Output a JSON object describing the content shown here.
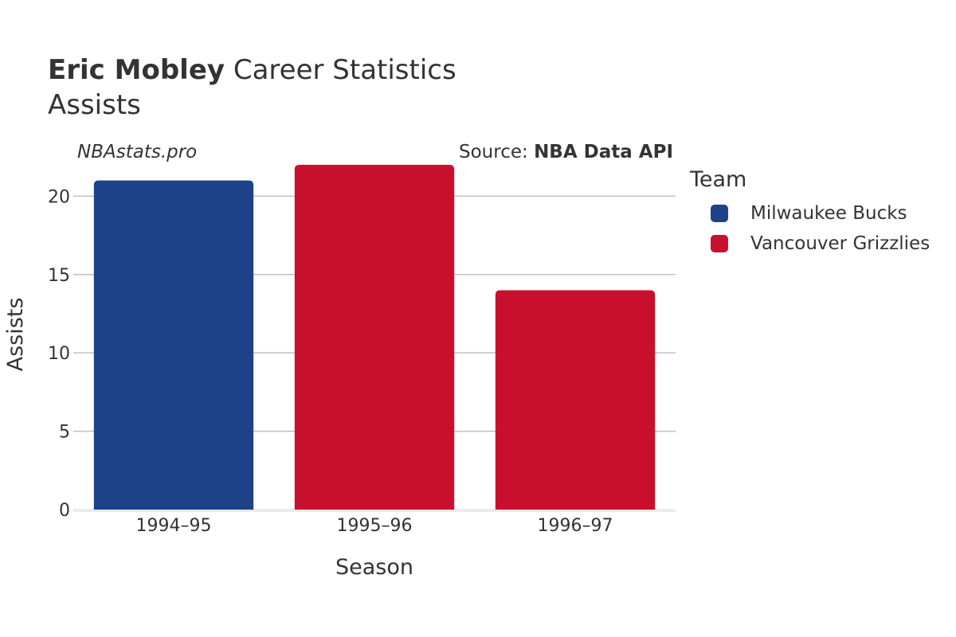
{
  "header": {
    "title_bold": "Eric Mobley",
    "title_rest": " Career Statistics",
    "subtitle": "Assists",
    "site": "NBAstats.pro",
    "source_prefix": "Source: ",
    "source_name": "NBA Data API"
  },
  "legend": {
    "title": "Team",
    "items": [
      {
        "label": "Milwaukee Bucks",
        "color": "#1d428a"
      },
      {
        "label": "Vancouver Grizzlies",
        "color": "#c8102e"
      }
    ]
  },
  "chart_data": {
    "type": "bar",
    "categories": [
      "1994–95",
      "1995–96",
      "1996–97"
    ],
    "values": [
      21,
      22,
      14
    ],
    "teams": [
      "Milwaukee Bucks",
      "Vancouver Grizzlies",
      "Vancouver Grizzlies"
    ],
    "colors": [
      "#1d428a",
      "#c8102e",
      "#c8102e"
    ],
    "xlabel": "Season",
    "ylabel": "Assists",
    "ylim": [
      0,
      22
    ],
    "yticks": [
      0,
      5,
      10,
      15,
      20
    ],
    "grid": true,
    "legend_position": "right"
  }
}
